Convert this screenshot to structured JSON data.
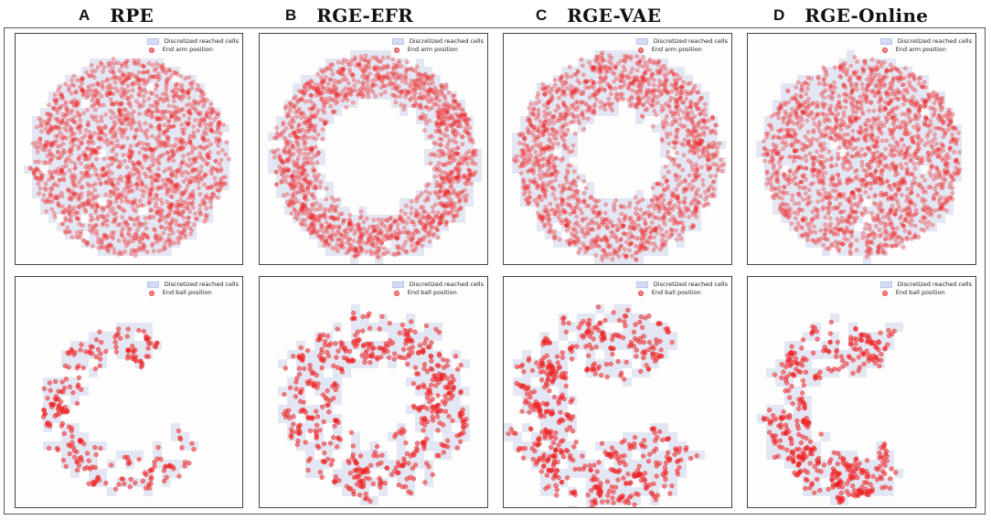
{
  "columns": [
    {
      "letter": "A",
      "title": "RPE"
    },
    {
      "letter": "B",
      "title": "RGE-EFR"
    },
    {
      "letter": "C",
      "title": "RGE-VAE"
    },
    {
      "letter": "D",
      "title": "RGE-Online"
    }
  ],
  "legend": {
    "cells_label": "Discretized reached cells",
    "arm_label": "End arm position",
    "ball_label": "End ball position"
  },
  "colors": {
    "cell_fill": "#e3e7f3",
    "point": "#ee2222"
  },
  "chart_data": [
    {
      "type": "scatter",
      "method": "RPE",
      "row": "End arm position",
      "distribution": "filled disk",
      "r_inner": 0.0,
      "r_outer": 1.0,
      "gap_angle_deg": null,
      "series": [
        {
          "name": "Discretized reached cells"
        },
        {
          "name": "End arm position"
        }
      ]
    },
    {
      "type": "scatter",
      "method": "RGE-EFR",
      "row": "End arm position",
      "distribution": "ring",
      "r_inner": 0.55,
      "r_outer": 1.0,
      "gap_angle_deg": null,
      "series": [
        {
          "name": "Discretized reached cells"
        },
        {
          "name": "End arm position"
        }
      ]
    },
    {
      "type": "scatter",
      "method": "RGE-VAE",
      "row": "End arm position",
      "distribution": "ring",
      "r_inner": 0.42,
      "r_outer": 1.0,
      "gap_angle_deg": null,
      "series": [
        {
          "name": "Discretized reached cells"
        },
        {
          "name": "End arm position"
        }
      ]
    },
    {
      "type": "scatter",
      "method": "RGE-Online",
      "row": "End arm position",
      "distribution": "filled disk",
      "r_inner": 0.0,
      "r_outer": 1.0,
      "gap_angle_deg": null,
      "series": [
        {
          "name": "Discretized reached cells"
        },
        {
          "name": "End arm position"
        }
      ]
    },
    {
      "type": "scatter",
      "method": "RPE",
      "row": "End ball position",
      "distribution": "sparse ring",
      "r_inner": 0.55,
      "r_outer": 1.0,
      "gap_angle_deg": 40,
      "series": [
        {
          "name": "Discretized reached cells"
        },
        {
          "name": "End ball position"
        }
      ]
    },
    {
      "type": "scatter",
      "method": "RGE-EFR",
      "row": "End ball position",
      "distribution": "ring",
      "r_inner": 0.38,
      "r_outer": 1.0,
      "gap_angle_deg": 0,
      "series": [
        {
          "name": "Discretized reached cells"
        },
        {
          "name": "End ball position"
        }
      ]
    },
    {
      "type": "scatter",
      "method": "RGE-VAE",
      "row": "End ball position",
      "distribution": "ring",
      "r_inner": 0.32,
      "r_outer": 1.0,
      "gap_angle_deg": 35,
      "series": [
        {
          "name": "Discretized reached cells"
        },
        {
          "name": "End ball position"
        }
      ]
    },
    {
      "type": "scatter",
      "method": "RGE-Online",
      "row": "End ball position",
      "distribution": "partial ring",
      "r_inner": 0.42,
      "r_outer": 1.0,
      "gap_angle_deg": 55,
      "series": [
        {
          "name": "Discretized reached cells"
        },
        {
          "name": "End ball position"
        }
      ]
    }
  ]
}
